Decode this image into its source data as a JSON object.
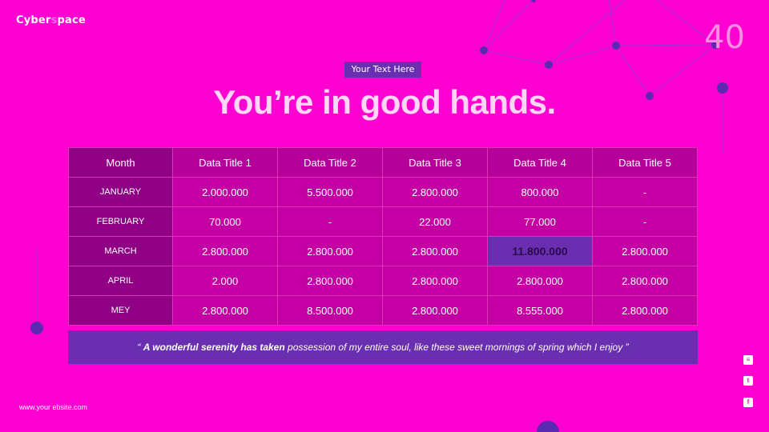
{
  "brand": {
    "part1": "Cyber",
    "part2": "pace"
  },
  "page_number": "40",
  "tag": "Your Text Here",
  "title": "You’re in good hands.",
  "table": {
    "headers": [
      "Month",
      "Data Title 1",
      "Data Title 2",
      "Data Title 3",
      "Data Title 4",
      "Data Title 5"
    ],
    "rows": [
      [
        "JANUARY",
        "2.000.000",
        "5.500.000",
        "2.800.000",
        "800.000",
        "-"
      ],
      [
        "FEBRUARY",
        "70.000",
        "-",
        "22.000",
        "77.000",
        "-"
      ],
      [
        "MARCH",
        "2.800.000",
        "2.800.000",
        "2.800.000",
        "11.800.000",
        "2.800.000"
      ],
      [
        "APRIL",
        "2.000",
        "2.800.000",
        "2.800.000",
        "2.800.000",
        "2.800.000"
      ],
      [
        "MEY",
        "2.800.000",
        "8.500.000",
        "2.800.000",
        "8.555.000",
        "2.800.000"
      ]
    ]
  },
  "quote": {
    "open": "“",
    "bold": "A wonderful serenity has taken",
    "rest": " possession of my entire soul, like these sweet mornings of spring which I enjoy",
    "close": " ”"
  },
  "website": "www.your ebsite.com",
  "social_icons": [
    "rss-icon",
    "twitter-icon",
    "facebook-icon"
  ],
  "colors": {
    "background": "#ff00d2",
    "accent": "#6a2fb0",
    "header": "#b5009a",
    "month_col": "#8f0085"
  }
}
